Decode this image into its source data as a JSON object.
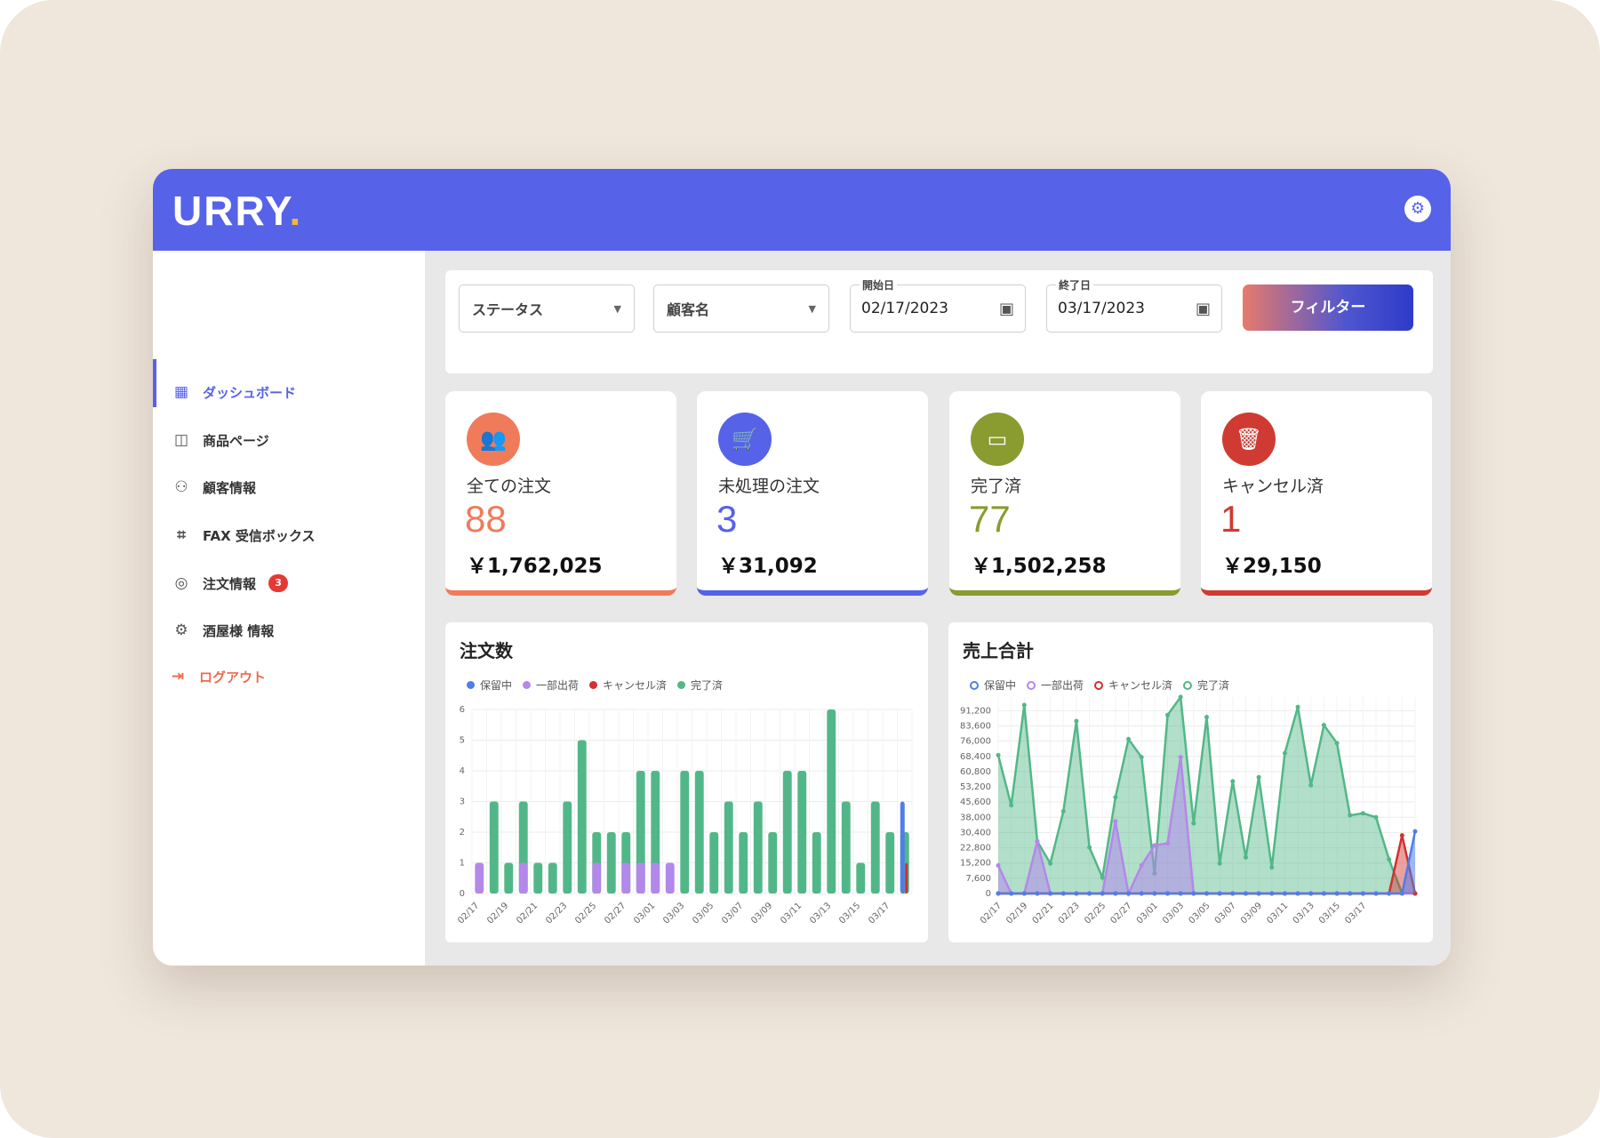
{
  "app": {
    "logo": "URRY",
    "logo_dot": "."
  },
  "header": {
    "settings_icon": "gear-icon"
  },
  "sidebar": {
    "items": [
      {
        "label": "ダッシュボード",
        "icon": "grid-icon",
        "active": true
      },
      {
        "label": "商品ページ",
        "icon": "bag-icon"
      },
      {
        "label": "顧客情報",
        "icon": "users-icon"
      },
      {
        "label": "FAX 受信ボックス",
        "icon": "crop-icon"
      },
      {
        "label": "注文情報",
        "icon": "compass-icon",
        "badge": "3"
      },
      {
        "label": "酒屋様 情報",
        "icon": "settings-icon"
      },
      {
        "label": "ログアウト",
        "icon": "logout-icon"
      }
    ]
  },
  "filters": {
    "status_label": "ステータス",
    "customer_label": "顧客名",
    "start_label": "開始日",
    "start_value": "02/17/2023",
    "end_label": "終了日",
    "end_value": "03/17/2023",
    "button_label": "フィルター"
  },
  "cards": [
    {
      "label": "全ての注文",
      "count": "88",
      "amount": "￥1,762,025",
      "color": "#ef7b5a",
      "icon": "people-icon"
    },
    {
      "label": "未処理の注文",
      "count": "3",
      "amount": "￥31,092",
      "color": "#5662e8",
      "icon": "cart-icon"
    },
    {
      "label": "完了済",
      "count": "77",
      "amount": "￥1,502,258",
      "color": "#8a9b2f",
      "icon": "cash-icon"
    },
    {
      "label": "キャンセル済",
      "count": "1",
      "amount": "￥29,150",
      "color": "#cf3b32",
      "icon": "trash-icon"
    }
  ],
  "colors": {
    "hold": "#4f7ee8",
    "partial": "#b388eb",
    "cancel": "#d3302d",
    "done": "#52b788"
  },
  "chart_data": [
    {
      "type": "bar",
      "title": "注文数",
      "series": [
        {
          "name": "保留中",
          "values": [
            0,
            0,
            0,
            0,
            0,
            0,
            0,
            0,
            0,
            0,
            0,
            0,
            0,
            0,
            0,
            0,
            0,
            0,
            0,
            0,
            0,
            0,
            0,
            0,
            0,
            0,
            0,
            0,
            0,
            3
          ]
        },
        {
          "name": "一部出荷",
          "values": [
            1,
            0,
            0,
            1,
            0,
            0,
            0,
            0,
            1,
            0,
            1,
            1,
            1,
            1,
            0,
            0,
            0,
            0,
            0,
            0,
            0,
            0,
            0,
            0,
            0,
            0,
            0,
            0,
            0,
            0
          ]
        },
        {
          "name": "キャンセル済",
          "values": [
            0,
            0,
            0,
            0,
            0,
            0,
            0,
            0,
            0,
            0,
            0,
            0,
            0,
            0,
            0,
            0,
            0,
            0,
            0,
            0,
            0,
            0,
            0,
            0,
            0,
            0,
            0,
            0,
            0,
            1
          ]
        },
        {
          "name": "完了済",
          "values": [
            0,
            3,
            1,
            3,
            1,
            1,
            3,
            5,
            2,
            2,
            2,
            4,
            4,
            0,
            4,
            4,
            2,
            3,
            2,
            3,
            2,
            4,
            4,
            2,
            6,
            3,
            1,
            3,
            2,
            2
          ]
        }
      ],
      "x_tick_labels": [
        "02/17",
        "02/19",
        "02/21",
        "02/23",
        "02/25",
        "02/27",
        "03/01",
        "03/03",
        "03/05",
        "03/07",
        "03/09",
        "03/11",
        "03/13",
        "03/15",
        "03/17"
      ],
      "y_tick_labels": [
        "0",
        "1",
        "2",
        "3",
        "4",
        "5",
        "6"
      ],
      "ylim": [
        0,
        6
      ]
    },
    {
      "type": "area",
      "title": "売上合計",
      "series": [
        {
          "name": "保留中",
          "values": [
            0,
            0,
            0,
            0,
            0,
            0,
            0,
            0,
            0,
            0,
            0,
            0,
            0,
            0,
            0,
            0,
            0,
            0,
            0,
            0,
            0,
            0,
            0,
            0,
            0,
            0,
            0,
            0,
            0,
            0,
            0,
            0,
            31000
          ]
        },
        {
          "name": "一部出荷",
          "values": [
            14000,
            0,
            0,
            26000,
            0,
            0,
            0,
            0,
            0,
            36000,
            0,
            14000,
            24000,
            25000,
            68000,
            0,
            0,
            0,
            0,
            0,
            0,
            0,
            0,
            0,
            0,
            0,
            0,
            0,
            0,
            0,
            0,
            0,
            0
          ]
        },
        {
          "name": "キャンセル済",
          "values": [
            0,
            0,
            0,
            0,
            0,
            0,
            0,
            0,
            0,
            0,
            0,
            0,
            0,
            0,
            0,
            0,
            0,
            0,
            0,
            0,
            0,
            0,
            0,
            0,
            0,
            0,
            0,
            0,
            0,
            0,
            0,
            29000,
            0
          ]
        },
        {
          "name": "完了済",
          "values": [
            69000,
            44000,
            94000,
            26000,
            15000,
            41000,
            86000,
            23000,
            8000,
            48000,
            77000,
            68000,
            10000,
            89000,
            98000,
            35000,
            88000,
            15000,
            56000,
            18000,
            58000,
            13000,
            70000,
            93000,
            54000,
            84000,
            75000,
            39000,
            40000,
            38000,
            17000,
            0,
            0
          ]
        }
      ],
      "x_tick_labels": [
        "02/17",
        "02/19",
        "02/21",
        "02/23",
        "02/25",
        "02/27",
        "03/01",
        "03/03",
        "03/05",
        "03/07",
        "03/09",
        "03/11",
        "03/13",
        "03/15",
        "03/17"
      ],
      "y_tick_labels": [
        "0",
        "7,600",
        "15,200",
        "22,800",
        "30,400",
        "38,000",
        "45,600",
        "53,200",
        "60,800",
        "68,400",
        "76,000",
        "83,600",
        "91,200"
      ],
      "ylim": [
        0,
        98000
      ]
    }
  ]
}
